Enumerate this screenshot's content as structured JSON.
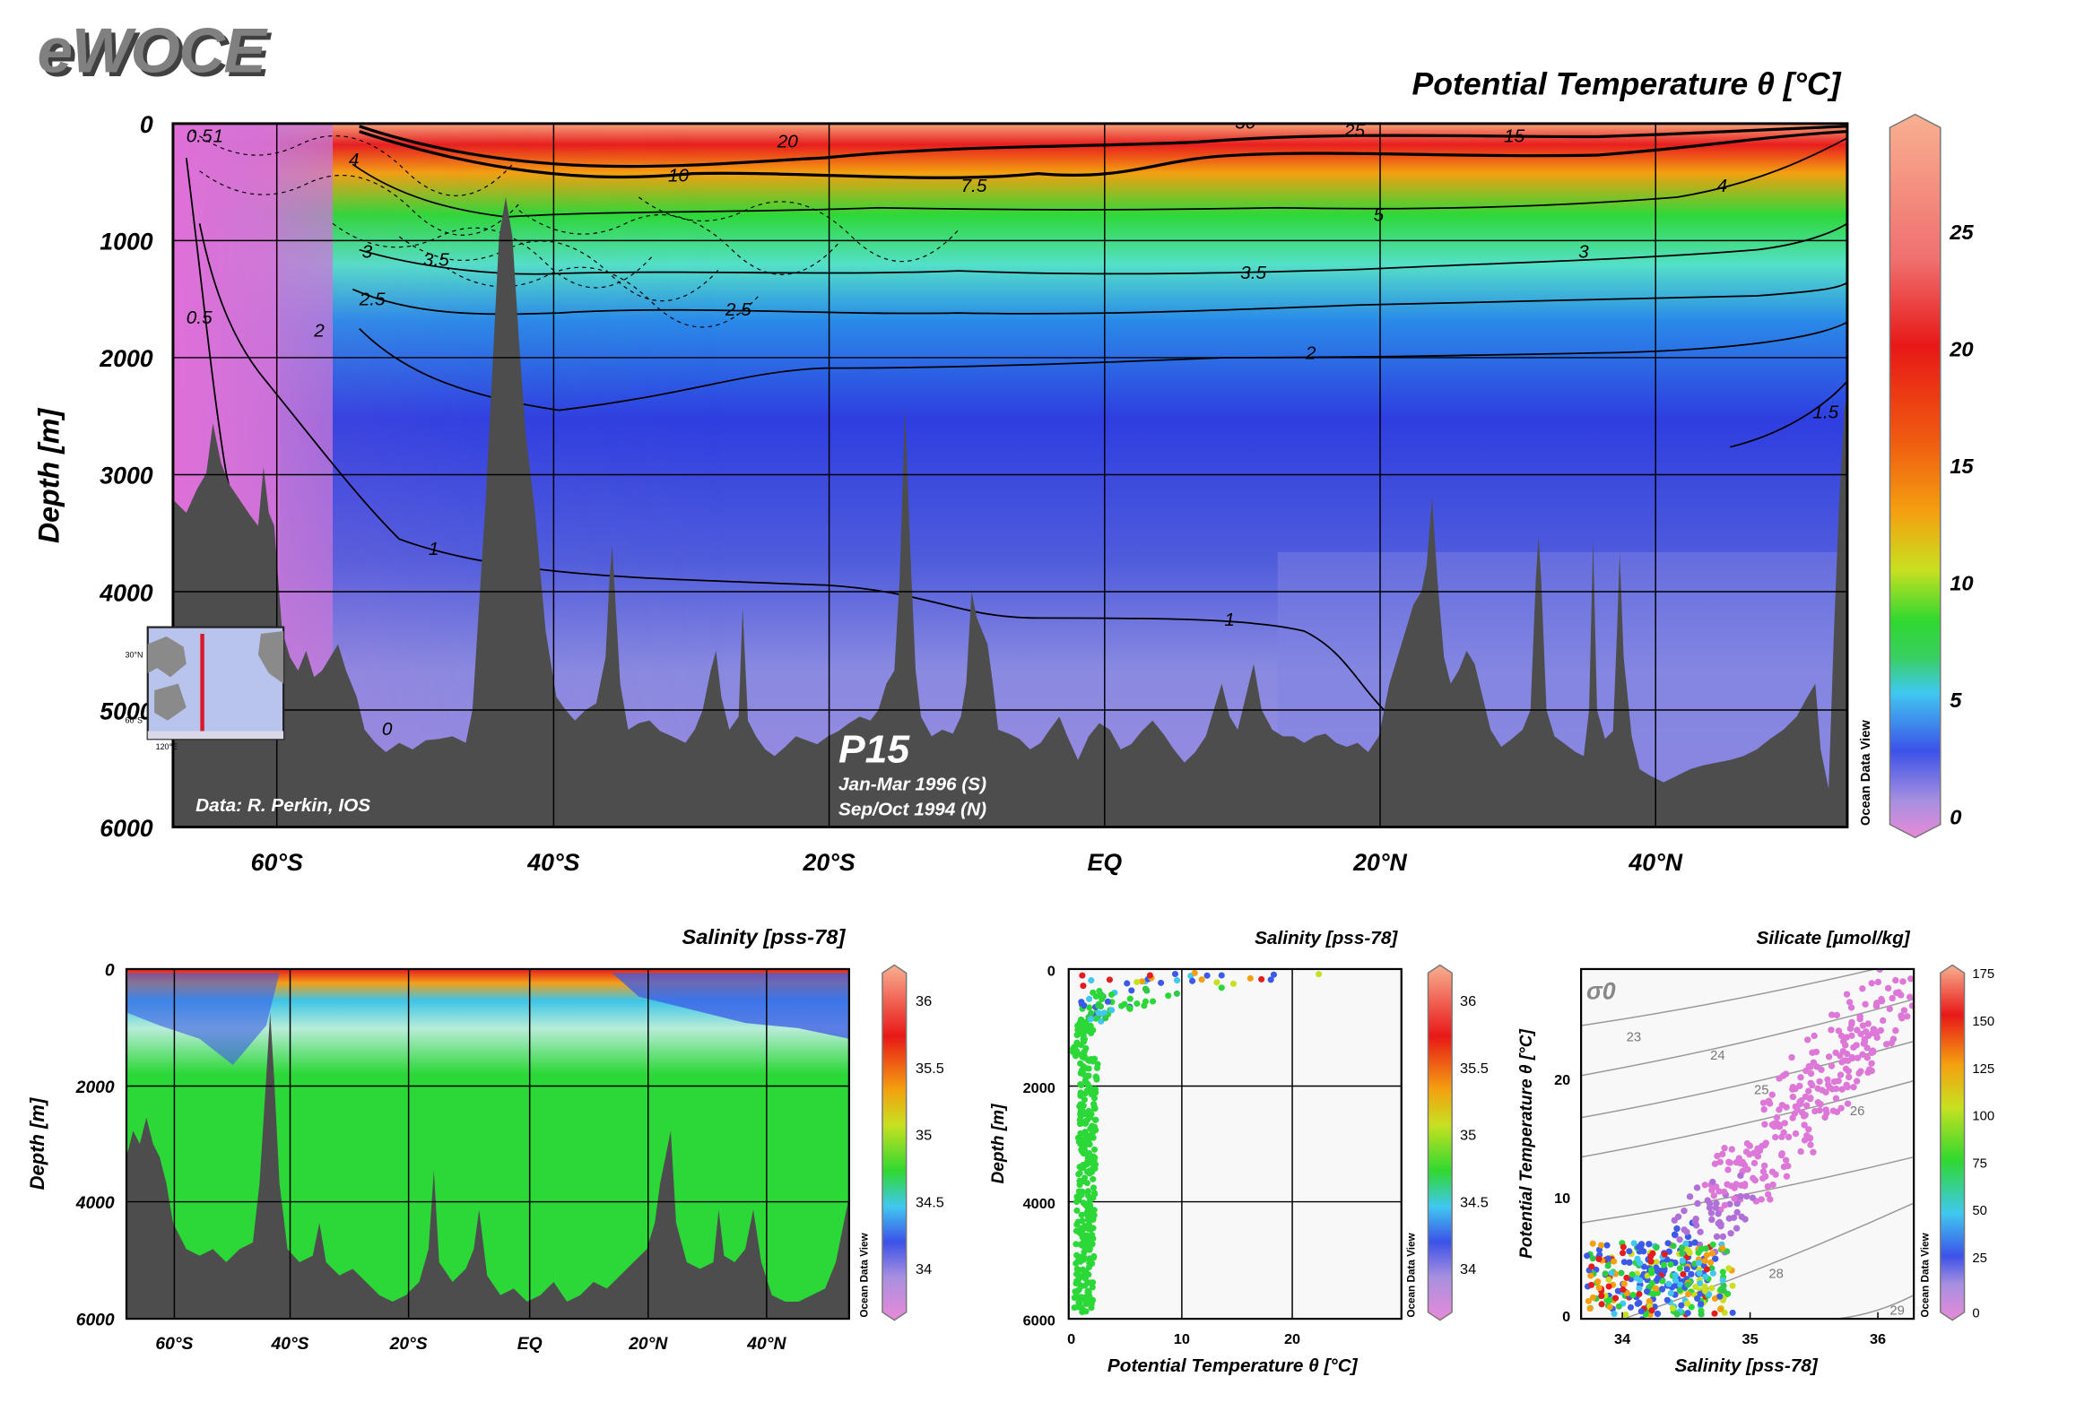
{
  "logo": "eWOCE",
  "colors": {
    "land": "#4d4d4d",
    "scale": [
      "#e68ad6",
      "#a18ce0",
      "#3c4fe6",
      "#4fd4e8",
      "#2ed838",
      "#c8e02c",
      "#f59a12",
      "#e61c1c",
      "#f8a880"
    ]
  },
  "icons": {
    "inset_map": "pacific-location-map-icon"
  },
  "main": {
    "title": "Potential Temperature θ [°C]",
    "ylabel": "Depth [m]",
    "y_ticks": [
      "0",
      "1000",
      "2000",
      "3000",
      "4000",
      "5000",
      "6000"
    ],
    "x_ticks": [
      "60°S",
      "40°S",
      "20°S",
      "EQ",
      "20°N",
      "40°N"
    ],
    "credit": "Data: R. Perkin, IOS",
    "section": "P15",
    "dates": [
      "Jan-Mar 1996 (S)",
      "Sep/Oct 1994 (N)"
    ],
    "watermark": "Ocean Data View",
    "colorbar_ticks": [
      "25",
      "20",
      "15",
      "10",
      "5",
      "0"
    ],
    "contour_labels": [
      "0.5",
      "1",
      "0.5",
      "4",
      "3",
      "2.5",
      "3.5",
      "2",
      "1",
      "0.5",
      "0",
      "20",
      "10",
      "7.5",
      "30",
      "25",
      "15",
      "5",
      "4",
      "3",
      "3.5",
      "2.5",
      "2",
      "1",
      "1.5",
      "1"
    ],
    "inset": {
      "lat_labels": [
        "30°N",
        "60°S"
      ],
      "lon_label": "120°E"
    }
  },
  "panel1": {
    "title": "Salinity [pss-78]",
    "ylabel": "Depth [m]",
    "y_ticks": [
      "0",
      "2000",
      "4000",
      "6000"
    ],
    "x_ticks": [
      "60°S",
      "40°S",
      "20°S",
      "EQ",
      "20°N",
      "40°N"
    ],
    "watermark": "Ocean Data View",
    "colorbar_ticks": [
      "36",
      "35.5",
      "35",
      "34.5",
      "34"
    ]
  },
  "panel2": {
    "title": "Salinity [pss-78]",
    "ylabel": "Depth [m]",
    "xlabel": "Potential Temperature θ [°C]",
    "y_ticks": [
      "0",
      "2000",
      "4000",
      "6000"
    ],
    "x_ticks": [
      "0",
      "10",
      "20"
    ],
    "watermark": "Ocean Data View",
    "colorbar_ticks": [
      "36",
      "35.5",
      "35",
      "34.5",
      "34"
    ]
  },
  "panel3": {
    "title": "Silicate [µmol/kg]",
    "ylabel": "Potential Temperature θ [°C]",
    "xlabel": "Salinity [pss-78]",
    "y_ticks": [
      "0",
      "10",
      "20"
    ],
    "x_ticks": [
      "34",
      "35",
      "36"
    ],
    "sigma": "σ0",
    "sigma_labels": [
      "23",
      "24",
      "25",
      "26",
      "28",
      "29"
    ],
    "watermark": "Ocean Data View",
    "colorbar_ticks": [
      "175",
      "150",
      "125",
      "100",
      "75",
      "50",
      "25",
      "0"
    ]
  },
  "chart_data": [
    {
      "type": "heatmap",
      "title": "Potential Temperature θ [°C]",
      "ylabel": "Depth [m]",
      "x_categories": [
        "60°S",
        "40°S",
        "20°S",
        "EQ",
        "20°N",
        "40°N"
      ],
      "ylim": [
        6000,
        0
      ],
      "colorbar_range": [
        0,
        28
      ],
      "colorbar_ticks": [
        0,
        5,
        10,
        15,
        20,
        25
      ],
      "contour_levels": [
        0,
        0.5,
        1,
        1.5,
        2,
        2.5,
        3,
        3.5,
        4,
        5,
        7.5,
        10,
        15,
        20,
        25,
        30
      ]
    },
    {
      "type": "heatmap",
      "title": "Salinity [pss-78]",
      "ylabel": "Depth [m]",
      "ylim": [
        6000,
        0
      ],
      "colorbar_ticks": [
        34,
        34.5,
        35,
        35.5,
        36
      ]
    },
    {
      "type": "scatter",
      "title": "Salinity [pss-78]",
      "xlabel": "Potential Temperature θ [°C]",
      "ylabel": "Depth [m]",
      "xlim": [
        0,
        30
      ],
      "ylim": [
        6000,
        0
      ],
      "colorbar_ticks": [
        34,
        34.5,
        35,
        35.5,
        36
      ]
    },
    {
      "type": "scatter",
      "title": "Silicate [µmol/kg]",
      "xlabel": "Salinity [pss-78]",
      "ylabel": "Potential Temperature θ [°C]",
      "xlim": [
        33.6,
        36.3
      ],
      "ylim": [
        0,
        29
      ],
      "colorbar_ticks": [
        0,
        25,
        50,
        75,
        100,
        125,
        150,
        175
      ]
    }
  ]
}
